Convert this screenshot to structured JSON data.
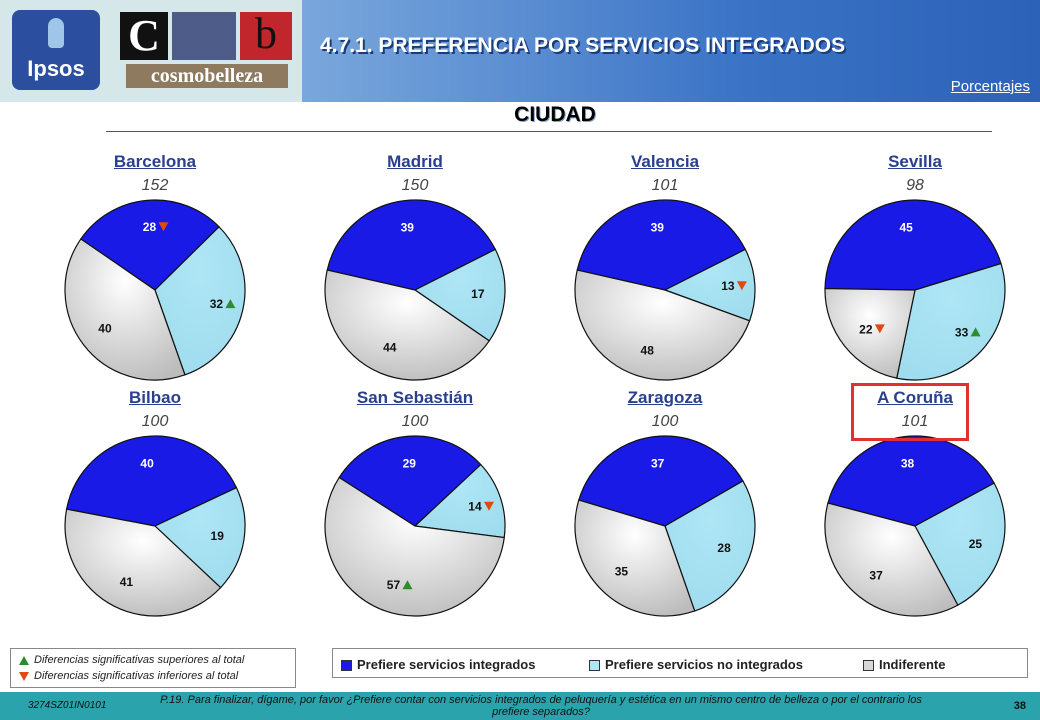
{
  "header": {
    "ipsos_logo_text": "Ipsos",
    "cb_logo_c": "C",
    "cb_logo_b": "b",
    "cb_logo_word": "cosmobelleza",
    "title": "4.7.1.  PREFERENCIA POR SERVICIOS INTEGRADOS",
    "units": "Porcentajes"
  },
  "section_title": "CIUDAD",
  "colors": {
    "integrados": "#1a1ae6",
    "no_integrados": "#aee6f5",
    "indiferente": "#d8d8d8",
    "up": "#2e8b2e",
    "down": "#e04a10"
  },
  "chart_data": {
    "type": "pie",
    "series_names": [
      "Prefiere servicios integrados",
      "Prefiere servicios no integrados",
      "Indiferente"
    ],
    "cities": [
      {
        "name": "Barcelona",
        "base": "152",
        "values": [
          28,
          32,
          40
        ],
        "sig": [
          "down",
          "up",
          null
        ]
      },
      {
        "name": "Madrid",
        "base": "150",
        "values": [
          39,
          17,
          44
        ],
        "sig": [
          null,
          null,
          null
        ]
      },
      {
        "name": "Valencia",
        "base": "101",
        "values": [
          39,
          13,
          48
        ],
        "sig": [
          null,
          "down",
          null
        ]
      },
      {
        "name": "Sevilla",
        "base": "98",
        "values": [
          45,
          33,
          22
        ],
        "sig": [
          null,
          "up",
          "down"
        ]
      },
      {
        "name": "Bilbao",
        "base": "100",
        "values": [
          40,
          19,
          41
        ],
        "sig": [
          null,
          null,
          null
        ]
      },
      {
        "name": "San Sebastián",
        "base": "100",
        "values": [
          29,
          14,
          57
        ],
        "sig": [
          null,
          "down",
          "up"
        ]
      },
      {
        "name": "Zaragoza",
        "base": "100",
        "values": [
          37,
          28,
          35
        ],
        "sig": [
          null,
          null,
          null
        ]
      },
      {
        "name": "A Coruña",
        "base": "101",
        "values": [
          38,
          25,
          37
        ],
        "sig": [
          null,
          null,
          null
        ],
        "highlighted": true
      }
    ]
  },
  "significance_legend": {
    "up": "Diferencias significativas superiores al total",
    "down": "Diferencias significativas inferiores al total"
  },
  "footer": {
    "code": "3274SZ01IN0101",
    "question": "P.19. Para finalizar, dígame, por favor ¿Prefiere contar con servicios integrados de peluquería y estética en un mismo centro de belleza o por el contrario los prefiere separados?",
    "page": "38"
  }
}
